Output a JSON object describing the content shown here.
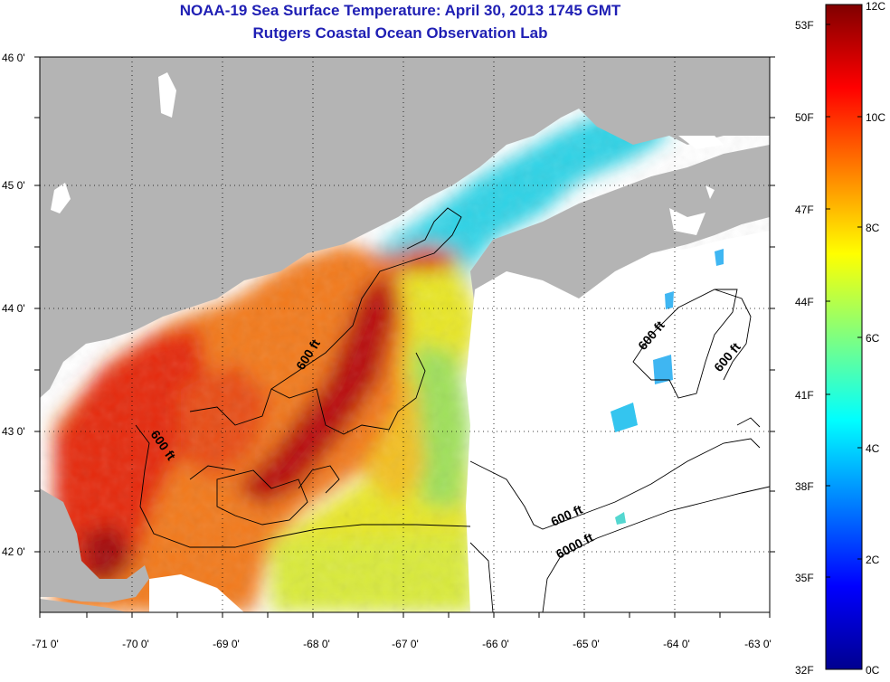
{
  "title": "NOAA-19 Sea Surface Temperature:  April 30, 2013 1745 GMT",
  "subtitle": "Rutgers Coastal Ocean Observation Lab",
  "map": {
    "x_ticks": [
      "-71 0'",
      "-70 0'",
      "-69 0'",
      "-68 0'",
      "-67 0'",
      "-66 0'",
      "-65 0'",
      "-64 0'",
      "-63 0'"
    ],
    "y_ticks": [
      "46 0'",
      "45 0'",
      "44 0'",
      "43 0'",
      "42 0'"
    ],
    "lon_range": [
      -71,
      -63
    ],
    "lat_range": [
      41.5,
      46
    ],
    "land_color": "#b4b4b4",
    "no_data_color": "#ffffff",
    "contour_labels": [
      "600 ft",
      "600 ft",
      "600 ft",
      "600 ft",
      "600 ft",
      "6000 ft"
    ]
  },
  "colorbar": {
    "celsius_labels": [
      "12C",
      "10C",
      "8C",
      "6C",
      "4C",
      "2C",
      "0C"
    ],
    "fahrenheit_labels": [
      "53F",
      "50F",
      "47F",
      "44F",
      "41F",
      "38F",
      "35F",
      "32F"
    ],
    "range_c": [
      0,
      12
    ],
    "colormap": "jet"
  }
}
